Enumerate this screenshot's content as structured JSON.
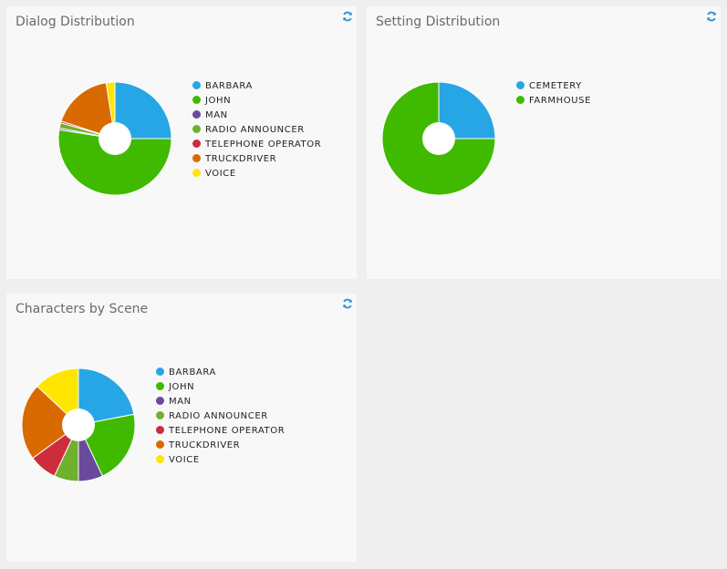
{
  "refresh_icon": "refresh-icon",
  "chart_data": [
    {
      "type": "pie",
      "title": "Dialog Distribution",
      "categories": [
        "BARBARA",
        "JOHN",
        "MAN",
        "RADIO ANNOUNCER",
        "TELEPHONE OPERATOR",
        "TRUCKDRIVER",
        "VOICE"
      ],
      "values": [
        25,
        52.5,
        0.5,
        1.5,
        0.5,
        17.5,
        2.5
      ],
      "colors": [
        "#27a6e5",
        "#3fba00",
        "#6a4a9c",
        "#6fb02c",
        "#cc2d3c",
        "#d96a00",
        "#ffe500"
      ],
      "legend": "right"
    },
    {
      "type": "pie",
      "title": "Setting Distribution",
      "categories": [
        "CEMETERY",
        "FARMHOUSE"
      ],
      "values": [
        25,
        75
      ],
      "colors": [
        "#27a6e5",
        "#3fba00"
      ],
      "legend": "right"
    },
    {
      "type": "pie",
      "title": "Characters by Scene",
      "categories": [
        "BARBARA",
        "JOHN",
        "MAN",
        "RADIO ANNOUNCER",
        "TELEPHONE OPERATOR",
        "TRUCKDRIVER",
        "VOICE"
      ],
      "values": [
        22,
        21,
        7,
        7,
        8,
        22,
        13
      ],
      "colors": [
        "#27a6e5",
        "#3fba00",
        "#6a4a9c",
        "#6fb02c",
        "#cc2d3c",
        "#d96a00",
        "#ffe500"
      ],
      "legend": "right"
    }
  ]
}
